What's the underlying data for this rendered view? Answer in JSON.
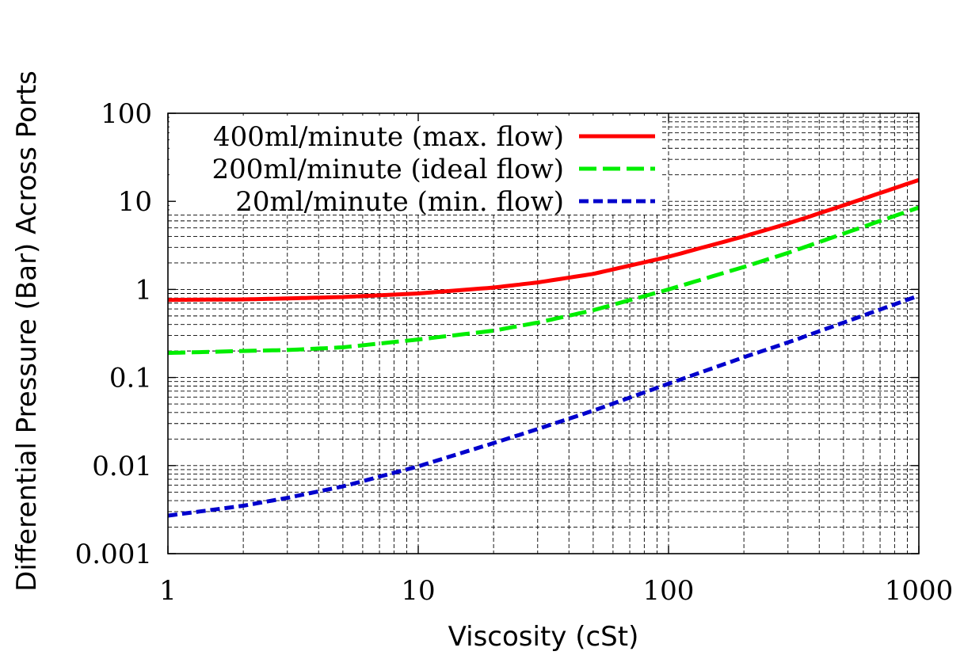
{
  "chart_data": {
    "type": "line",
    "xlabel": "Viscosity (cSt)",
    "ylabel": "Differential Pressure (Bar) Across Ports",
    "xscale": "log",
    "yscale": "log",
    "xlim": [
      1,
      1000
    ],
    "ylim": [
      0.001,
      100
    ],
    "grid": true,
    "legend": "top-left",
    "xticks": [
      {
        "value": 1,
        "label": "1"
      },
      {
        "value": 10,
        "label": "10"
      },
      {
        "value": 100,
        "label": "100"
      },
      {
        "value": 1000,
        "label": "1000"
      }
    ],
    "yticks": [
      {
        "value": 0.001,
        "label": "0.001"
      },
      {
        "value": 0.01,
        "label": "0.01"
      },
      {
        "value": 0.1,
        "label": "0.1"
      },
      {
        "value": 1,
        "label": "1"
      },
      {
        "value": 10,
        "label": "10"
      },
      {
        "value": 100,
        "label": "100"
      }
    ],
    "series": [
      {
        "name": "400ml/minute (max. flow)",
        "color": "#ff0000",
        "style": "solid",
        "x": [
          1,
          2,
          3,
          5,
          10,
          20,
          30,
          50,
          100,
          200,
          300,
          500,
          1000
        ],
        "y": [
          0.76,
          0.77,
          0.79,
          0.82,
          0.9,
          1.05,
          1.2,
          1.5,
          2.35,
          4.0,
          5.6,
          9.0,
          17.5
        ]
      },
      {
        "name": "200ml/minute (ideal flow)",
        "color": "#00ee00",
        "style": "dashed",
        "x": [
          1,
          2,
          3,
          5,
          10,
          20,
          30,
          50,
          100,
          200,
          300,
          500,
          1000
        ],
        "y": [
          0.19,
          0.2,
          0.205,
          0.22,
          0.27,
          0.34,
          0.42,
          0.58,
          1.0,
          1.8,
          2.6,
          4.3,
          8.5
        ]
      },
      {
        "name": "20ml/minute (min. flow)",
        "color": "#0000cc",
        "style": "dotted",
        "x": [
          1,
          2,
          3,
          5,
          10,
          20,
          30,
          50,
          100,
          200,
          300,
          500,
          1000
        ],
        "y": [
          0.0027,
          0.0035,
          0.0043,
          0.0058,
          0.0098,
          0.018,
          0.026,
          0.042,
          0.085,
          0.17,
          0.25,
          0.42,
          0.85
        ]
      }
    ]
  }
}
